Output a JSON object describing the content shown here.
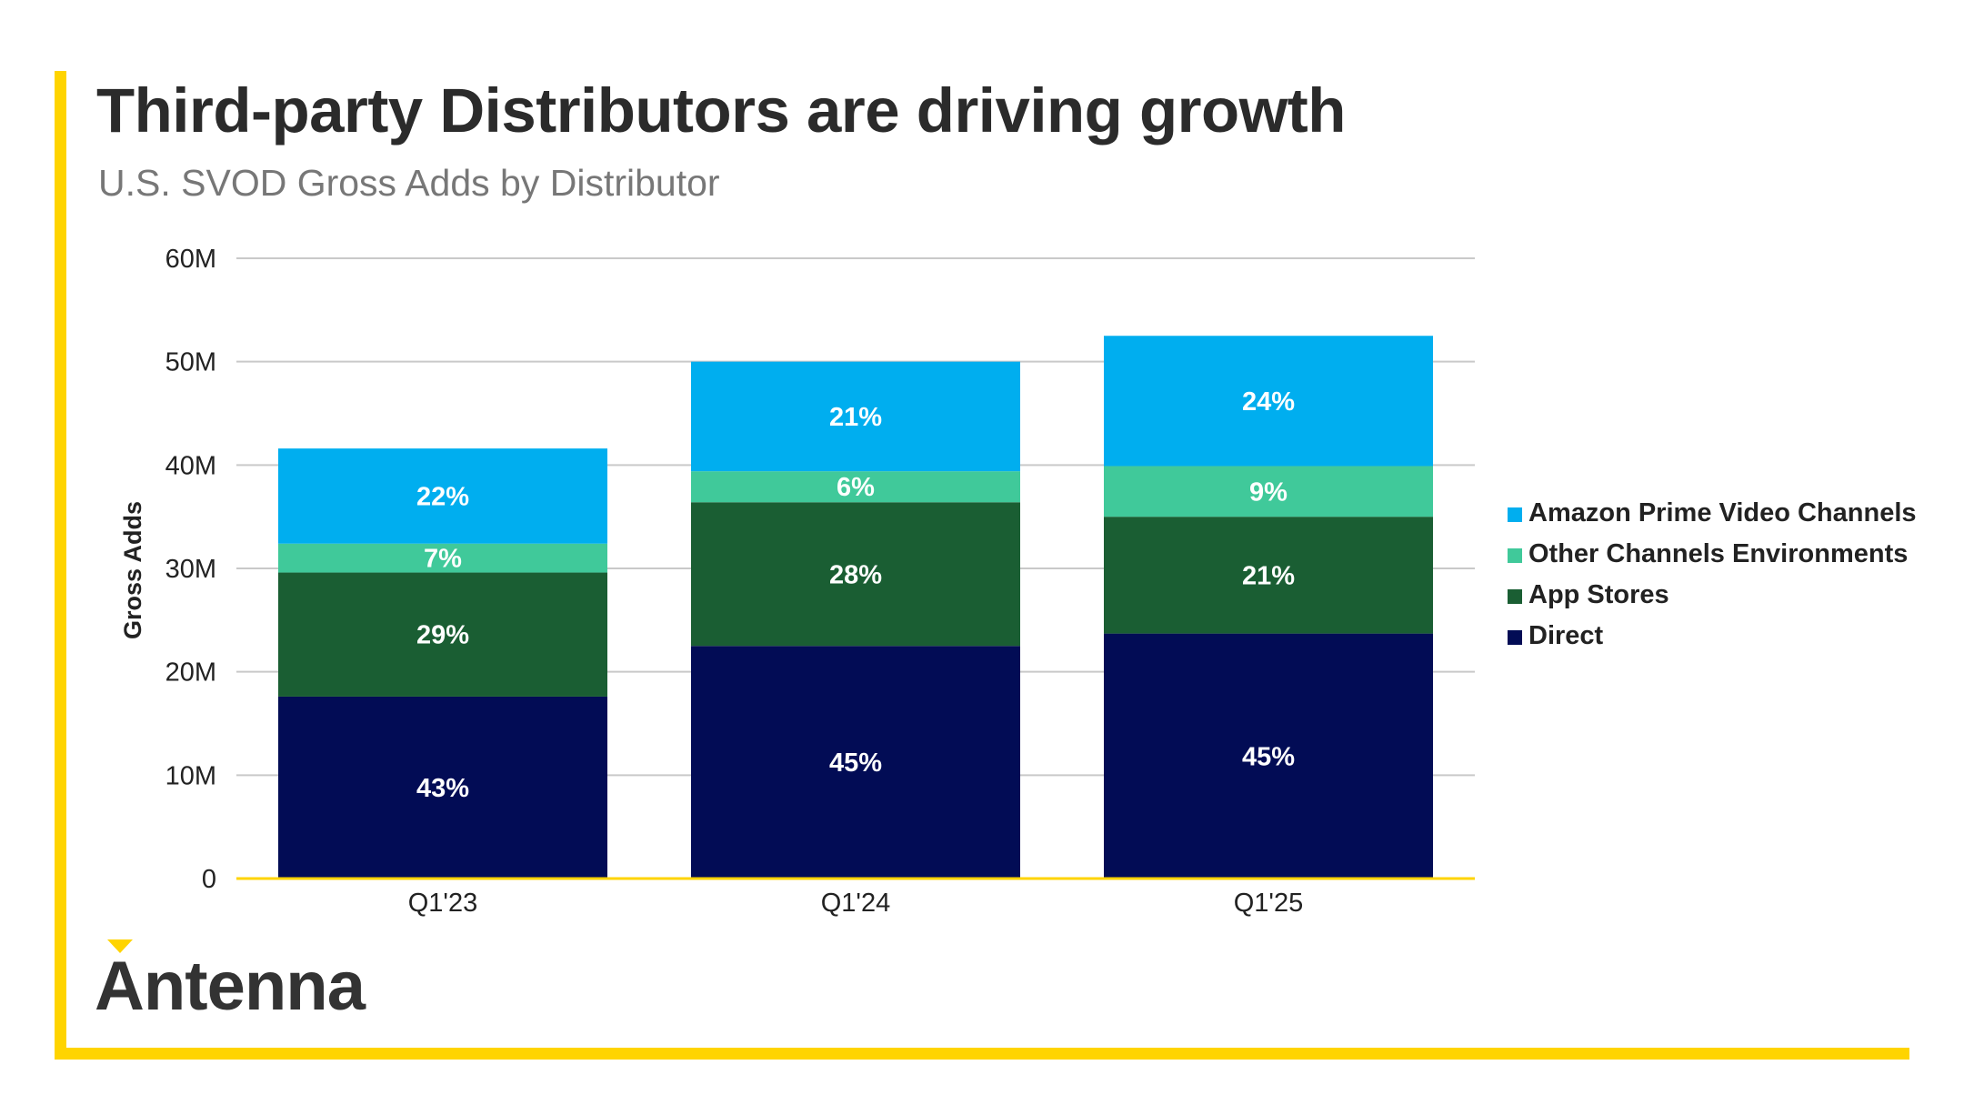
{
  "header": {
    "title": "Third-party Distributors are driving growth",
    "subtitle": "U.S. SVOD Gross Adds by Distributor"
  },
  "brand": {
    "logo_text": "Antenna",
    "accent_color": "#FFD400"
  },
  "chart_data": {
    "type": "bar",
    "stacked": true,
    "ylabel": "Gross Adds",
    "xlabel": "",
    "ylim": [
      0,
      60
    ],
    "yticks": [
      0,
      10,
      20,
      30,
      40,
      50,
      60
    ],
    "ytick_labels": [
      "0",
      "10M",
      "20M",
      "30M",
      "40M",
      "50M",
      "60M"
    ],
    "categories": [
      "Q1'23",
      "Q1'24",
      "Q1'25"
    ],
    "grid": true,
    "legend_position": "right",
    "series": [
      {
        "name": "Direct",
        "color": "#020C55",
        "values": [
          17.6,
          22.5,
          23.7
        ],
        "labels": [
          "43%",
          "45%",
          "45%"
        ]
      },
      {
        "name": "App Stores",
        "color": "#1A5E33",
        "values": [
          12.0,
          13.9,
          11.3
        ],
        "labels": [
          "29%",
          "28%",
          "21%"
        ]
      },
      {
        "name": "Other Channels Environments",
        "color": "#40C99A",
        "values": [
          2.8,
          3.0,
          4.9
        ],
        "labels": [
          "7%",
          "6%",
          "9%"
        ]
      },
      {
        "name": "Amazon Prime Video Channels",
        "color": "#00AEEF",
        "values": [
          9.2,
          10.6,
          12.6
        ],
        "labels": [
          "22%",
          "21%",
          "24%"
        ]
      }
    ]
  }
}
